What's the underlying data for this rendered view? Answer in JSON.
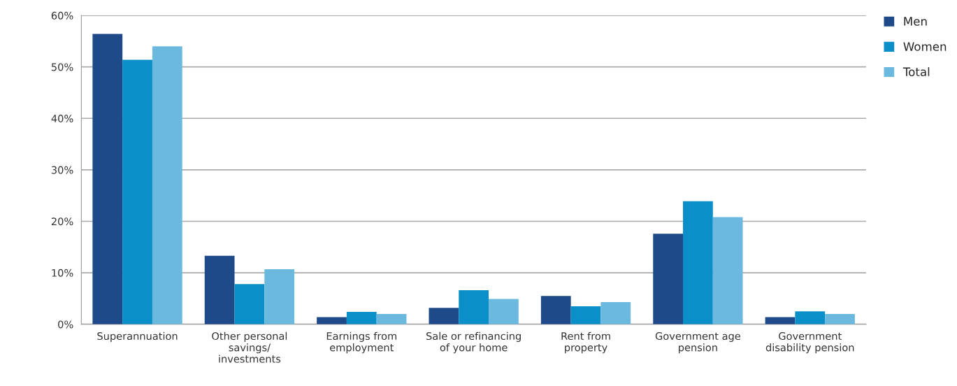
{
  "chart_data": {
    "type": "bar",
    "categories": [
      "Superannuation",
      "Other personal\nsavings/\ninvestments",
      "Earnings from\nemployment",
      "Sale or refinancing\nof your home",
      "Rent from\nproperty",
      "Government age\npension",
      "Government\ndisability pension"
    ],
    "series": [
      {
        "name": "Men",
        "color": "#1f4a8a",
        "values": [
          56.4,
          13.3,
          1.4,
          3.2,
          5.5,
          17.6,
          1.4
        ]
      },
      {
        "name": "Women",
        "color": "#0a8fc9",
        "values": [
          51.4,
          7.8,
          2.4,
          6.6,
          3.5,
          23.9,
          2.5
        ]
      },
      {
        "name": "Total",
        "color": "#6cb9df",
        "values": [
          54.0,
          10.7,
          2.0,
          4.9,
          4.3,
          20.8,
          2.0
        ]
      }
    ],
    "ylim": [
      0,
      60
    ],
    "yticks": [
      {
        "value": 0,
        "label": "0%"
      },
      {
        "value": 10,
        "label": "10%"
      },
      {
        "value": 20,
        "label": "20%"
      },
      {
        "value": 30,
        "label": "30%"
      },
      {
        "value": 40,
        "label": "40%"
      },
      {
        "value": 50,
        "label": "50%"
      },
      {
        "value": 60,
        "label": "60%"
      }
    ],
    "grid": "y",
    "legend": "top right"
  }
}
